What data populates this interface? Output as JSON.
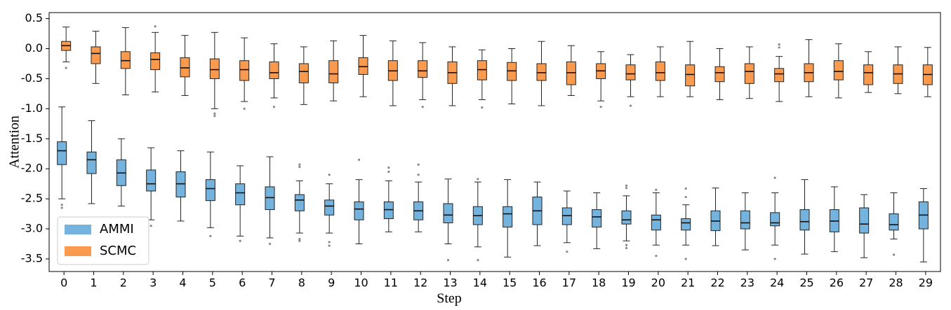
{
  "chart_data": {
    "type": "box",
    "x_label": "Step",
    "y_label": "Attention",
    "categories": [
      "0",
      "1",
      "2",
      "3",
      "4",
      "5",
      "6",
      "7",
      "8",
      "9",
      "10",
      "11",
      "12",
      "13",
      "14",
      "15",
      "16",
      "17",
      "18",
      "19",
      "20",
      "21",
      "22",
      "23",
      "24",
      "25",
      "26",
      "27",
      "28",
      "29"
    ],
    "ylim": [
      -3.71,
      0.6
    ],
    "yticks": [
      0.5,
      {
        "value": 0,
        "label": "0.0"
      },
      -0.5,
      {
        "value": -1,
        "label": "-1.0"
      },
      -1.5,
      {
        "value": -2,
        "label": "-2.0"
      },
      -2.5,
      {
        "value": -3,
        "label": "-3.0"
      },
      -3.5
    ],
    "legend": "lower left",
    "series": [
      {
        "name": "AMMI",
        "color": "#74b3de",
        "whislo": [
          -2.5,
          -2.58,
          -2.62,
          -2.85,
          -2.87,
          -2.98,
          -3.12,
          -3.15,
          -3.07,
          -3.07,
          -3.25,
          -3.05,
          -3.05,
          -3.25,
          -3.3,
          -3.47,
          -3.28,
          -3.23,
          -3.33,
          -3.2,
          -3.27,
          -3.27,
          -3.28,
          -3.35,
          -3.27,
          -3.42,
          -3.38,
          -3.48,
          -3.17,
          -3.55
        ],
        "q1": [
          -1.93,
          -2.08,
          -2.28,
          -2.37,
          -2.47,
          -2.53,
          -2.6,
          -2.68,
          -2.7,
          -2.77,
          -2.85,
          -2.83,
          -2.85,
          -2.9,
          -2.93,
          -2.97,
          -2.93,
          -2.93,
          -2.97,
          -2.92,
          -3.02,
          -3.02,
          -3.03,
          -3.0,
          -2.95,
          -3.02,
          -3.05,
          -3.07,
          -3.02,
          -3.0
        ],
        "med": [
          -1.7,
          -1.85,
          -2.07,
          -2.25,
          -2.25,
          -2.33,
          -2.4,
          -2.48,
          -2.52,
          -2.62,
          -2.67,
          -2.68,
          -2.7,
          -2.77,
          -2.78,
          -2.75,
          -2.7,
          -2.78,
          -2.8,
          -2.85,
          -2.85,
          -2.9,
          -2.87,
          -2.9,
          -2.9,
          -2.88,
          -2.87,
          -2.92,
          -2.93,
          -2.77
        ],
        "q3": [
          -1.55,
          -1.72,
          -1.85,
          -2.02,
          -2.05,
          -2.18,
          -2.25,
          -2.3,
          -2.43,
          -2.52,
          -2.55,
          -2.55,
          -2.55,
          -2.58,
          -2.63,
          -2.63,
          -2.47,
          -2.65,
          -2.68,
          -2.7,
          -2.77,
          -2.83,
          -2.7,
          -2.7,
          -2.73,
          -2.68,
          -2.68,
          -2.65,
          -2.75,
          -2.55
        ],
        "whishi": [
          -0.97,
          -1.2,
          -1.5,
          -1.65,
          -1.7,
          -1.72,
          -1.95,
          -1.8,
          -2.2,
          -2.25,
          -2.18,
          -2.2,
          -2.22,
          -2.17,
          -2.22,
          -2.18,
          -2.22,
          -2.37,
          -2.4,
          -2.45,
          -2.4,
          -2.6,
          -2.32,
          -2.4,
          -2.4,
          -2.18,
          -2.3,
          -2.43,
          -2.4,
          -2.33
        ],
        "fliers": [
          [
            -2.6,
            -2.65
          ],
          [],
          [],
          [
            -2.95
          ],
          [],
          [
            -3.12
          ],
          [
            -3.2
          ],
          [
            -3.25
          ],
          [
            -1.93,
            -1.97,
            -3.17,
            -3.2
          ],
          [
            -2.1,
            -3.22,
            -3.28
          ],
          [
            -1.85
          ],
          [
            -1.98,
            -2.05
          ],
          [
            -1.93,
            -2.1
          ],
          [
            -3.52
          ],
          [
            -2.17,
            -3.52
          ],
          [],
          [],
          [
            -3.38
          ],
          [],
          [
            -2.28,
            -2.32,
            -3.27,
            -3.32
          ],
          [
            -2.35,
            -3.45
          ],
          [
            -2.33,
            -2.47,
            -3.5
          ],
          [],
          [],
          [
            -2.15,
            -3.5
          ],
          [],
          [],
          [],
          [
            -3.43
          ],
          []
        ]
      },
      {
        "name": "SCMC",
        "color": "#f99a4f",
        "whislo": [
          -0.22,
          -0.58,
          -0.77,
          -0.72,
          -0.78,
          -1.0,
          -0.88,
          -0.82,
          -0.93,
          -0.87,
          -0.8,
          -0.95,
          -0.85,
          -0.95,
          -0.85,
          -0.92,
          -0.95,
          -0.78,
          -0.87,
          -0.8,
          -0.8,
          -0.8,
          -0.85,
          -0.83,
          -0.88,
          -0.8,
          -0.82,
          -0.73,
          -0.75,
          -0.8
        ],
        "q1": [
          -0.03,
          -0.25,
          -0.33,
          -0.35,
          -0.47,
          -0.5,
          -0.53,
          -0.5,
          -0.57,
          -0.57,
          -0.43,
          -0.53,
          -0.48,
          -0.58,
          -0.52,
          -0.53,
          -0.53,
          -0.6,
          -0.5,
          -0.52,
          -0.53,
          -0.62,
          -0.55,
          -0.58,
          -0.55,
          -0.55,
          -0.52,
          -0.6,
          -0.58,
          -0.6
        ],
        "med": [
          0.05,
          -0.08,
          -0.2,
          -0.18,
          -0.32,
          -0.35,
          -0.35,
          -0.4,
          -0.38,
          -0.42,
          -0.3,
          -0.37,
          -0.37,
          -0.4,
          -0.35,
          -0.37,
          -0.4,
          -0.4,
          -0.37,
          -0.42,
          -0.4,
          -0.43,
          -0.4,
          -0.38,
          -0.42,
          -0.4,
          -0.38,
          -0.4,
          -0.42,
          -0.43
        ],
        "q3": [
          0.12,
          0.03,
          -0.05,
          -0.07,
          -0.15,
          -0.17,
          -0.2,
          -0.22,
          -0.25,
          -0.2,
          -0.15,
          -0.2,
          -0.2,
          -0.22,
          -0.2,
          -0.23,
          -0.25,
          -0.22,
          -0.25,
          -0.27,
          -0.22,
          -0.27,
          -0.3,
          -0.25,
          -0.33,
          -0.25,
          -0.2,
          -0.27,
          -0.27,
          -0.27
        ],
        "whishi": [
          0.36,
          0.29,
          0.35,
          0.27,
          0.22,
          0.27,
          0.18,
          0.08,
          0.03,
          0.13,
          0.22,
          0.13,
          0.1,
          0.03,
          -0.02,
          0.0,
          0.12,
          0.05,
          -0.05,
          -0.1,
          0.03,
          0.12,
          0.0,
          0.03,
          -0.13,
          0.15,
          0.08,
          -0.05,
          0.03,
          0.02
        ],
        "fliers": [
          [
            -0.32
          ],
          [],
          [],
          [
            0.37
          ],
          [],
          [
            -1.08,
            -1.12
          ],
          [
            -1.0
          ],
          [
            -0.97
          ],
          [],
          [],
          [],
          [],
          [
            -0.97
          ],
          [],
          [
            -0.98
          ],
          [],
          [],
          [],
          [
            -0.97
          ],
          [
            -0.95
          ],
          [],
          [],
          [],
          [],
          [
            0.02,
            0.07
          ],
          [],
          [],
          [],
          [],
          []
        ]
      }
    ]
  }
}
